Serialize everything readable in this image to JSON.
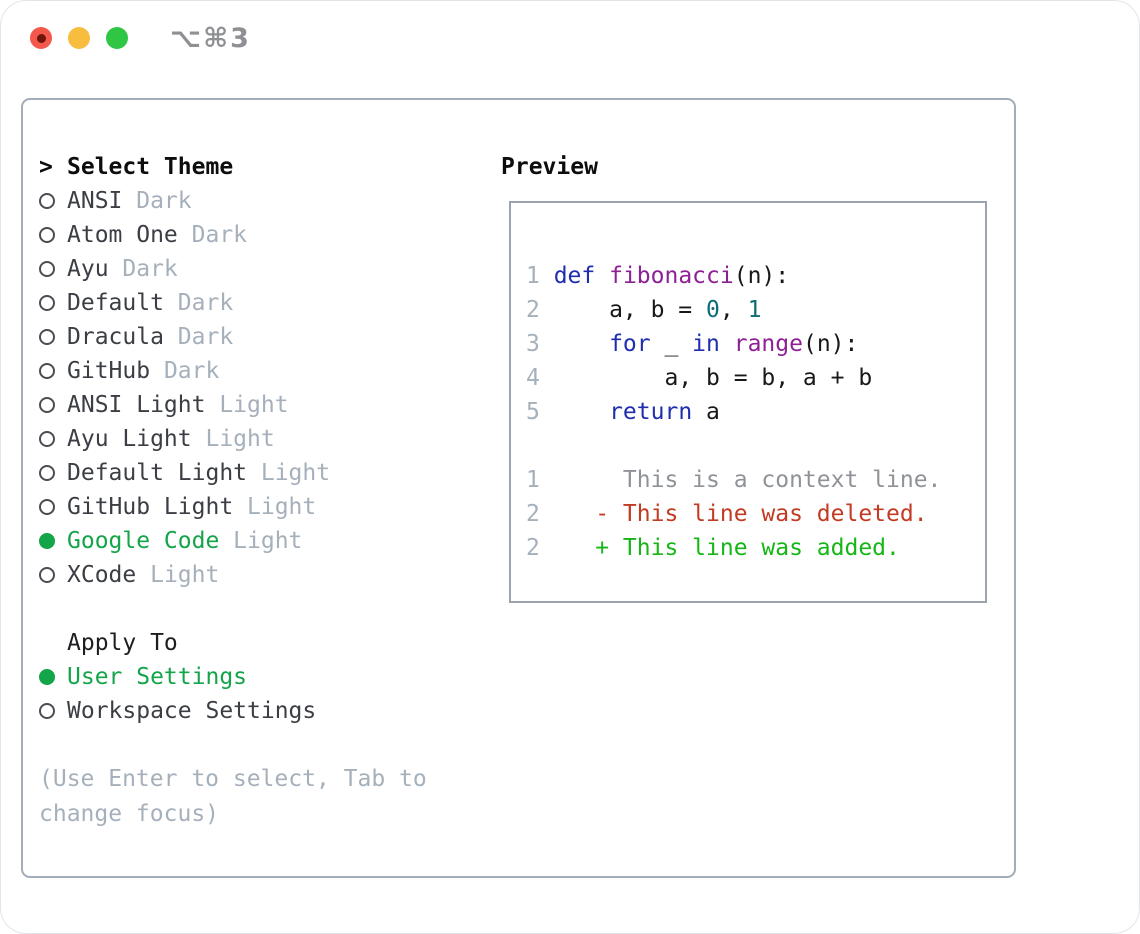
{
  "window": {
    "title": "⌥⌘3",
    "traffic_lights": [
      "close",
      "minimize",
      "zoom"
    ]
  },
  "theme_list": {
    "prompt_marker": ">",
    "header": "Select Theme",
    "items": [
      {
        "name": "ANSI",
        "tag": "Dark",
        "selected": false
      },
      {
        "name": "Atom One",
        "tag": "Dark",
        "selected": false
      },
      {
        "name": "Ayu",
        "tag": "Dark",
        "selected": false
      },
      {
        "name": "Default",
        "tag": "Dark",
        "selected": false
      },
      {
        "name": "Dracula",
        "tag": "Dark",
        "selected": false
      },
      {
        "name": "GitHub",
        "tag": "Dark",
        "selected": false
      },
      {
        "name": "ANSI Light",
        "tag": "Light",
        "selected": false
      },
      {
        "name": "Ayu Light",
        "tag": "Light",
        "selected": false
      },
      {
        "name": "Default Light",
        "tag": "Light",
        "selected": false
      },
      {
        "name": "GitHub Light",
        "tag": "Light",
        "selected": false
      },
      {
        "name": "Google Code",
        "tag": "Light",
        "selected": true
      },
      {
        "name": "XCode",
        "tag": "Light",
        "selected": false
      }
    ]
  },
  "apply_to": {
    "header": "Apply To",
    "options": [
      {
        "label": "User Settings",
        "selected": true
      },
      {
        "label": "Workspace Settings",
        "selected": false
      }
    ]
  },
  "footer": {
    "hint": "(Use Enter to select, Tab to change focus)"
  },
  "preview": {
    "header": "Preview",
    "code_lines": [
      {
        "num": "1",
        "segments": [
          {
            "t": "def",
            "c": "kw"
          },
          {
            "t": " ",
            "c": "pl"
          },
          {
            "t": "fibonacci",
            "c": "fn"
          },
          {
            "t": "(n):",
            "c": "pl"
          }
        ]
      },
      {
        "num": "2",
        "segments": [
          {
            "t": "    a, b = ",
            "c": "pl"
          },
          {
            "t": "0",
            "c": "nm"
          },
          {
            "t": ", ",
            "c": "pl"
          },
          {
            "t": "1",
            "c": "nm"
          }
        ]
      },
      {
        "num": "3",
        "segments": [
          {
            "t": "    ",
            "c": "pl"
          },
          {
            "t": "for",
            "c": "kw"
          },
          {
            "t": " _ ",
            "c": "pl"
          },
          {
            "t": "in",
            "c": "kw"
          },
          {
            "t": " ",
            "c": "pl"
          },
          {
            "t": "range",
            "c": "fn"
          },
          {
            "t": "(n):",
            "c": "pl"
          }
        ]
      },
      {
        "num": "4",
        "segments": [
          {
            "t": "        a, b = b, a + b",
            "c": "pl"
          }
        ]
      },
      {
        "num": "5",
        "segments": [
          {
            "t": "    ",
            "c": "pl"
          },
          {
            "t": "return",
            "c": "kw"
          },
          {
            "t": " a",
            "c": "pl"
          }
        ]
      }
    ],
    "diff_lines": [
      {
        "num": "1",
        "segments": [
          {
            "t": "     This is a context line.",
            "c": "ctx"
          }
        ]
      },
      {
        "num": "2",
        "segments": [
          {
            "t": "   ",
            "c": "pl"
          },
          {
            "t": "- This line was deleted.",
            "c": "del"
          }
        ]
      },
      {
        "num": "2",
        "segments": [
          {
            "t": "   ",
            "c": "pl"
          },
          {
            "t": "+ This line was added.",
            "c": "add"
          }
        ]
      }
    ]
  },
  "colors": {
    "accent_green": "#14a44a",
    "added_green": "#17b617",
    "deleted_red": "#c23b22",
    "keyword_blue": "#1f2dae",
    "function_purple": "#8e2096",
    "number_teal": "#0b6e74",
    "muted_gray": "#a6b0bb",
    "border_gray": "#a3adb8"
  }
}
